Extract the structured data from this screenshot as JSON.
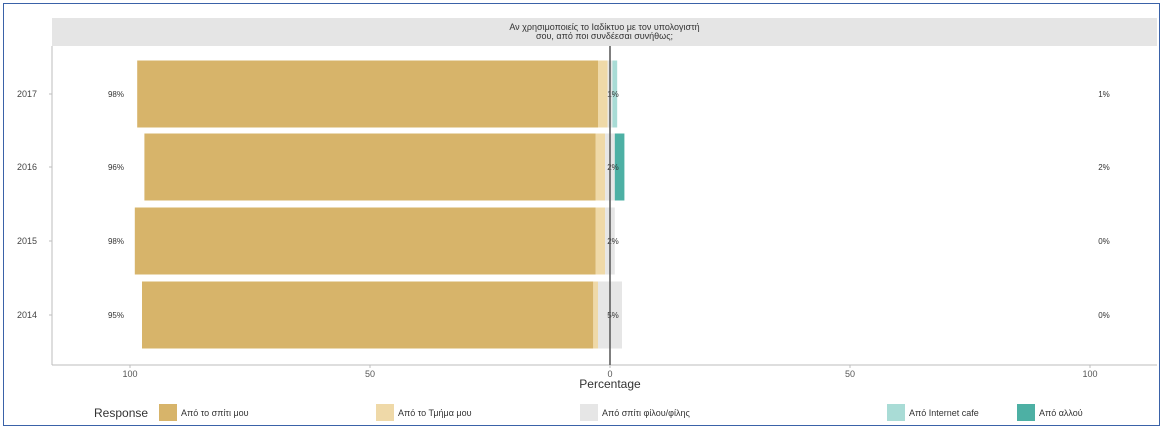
{
  "chart_data": {
    "type": "bar",
    "orientation": "horizontal",
    "stacking": "diverging",
    "title_lines": [
      "Αν χρησιμοποιείς το Ιαδίκτυο με τον υπολογιστή",
      "σου, από ποι συνδέεσαι συνήθως;"
    ],
    "xlabel": "Percentage",
    "xlim": [
      -100,
      100
    ],
    "x_ticks": [
      -100,
      -50,
      0,
      50,
      100
    ],
    "x_tick_labels": [
      "100",
      "50",
      "0",
      "50",
      "100"
    ],
    "legend_title": "Response",
    "legend_position": "bottom",
    "categories": [
      "2017",
      "2016",
      "2015",
      "2014"
    ],
    "series": [
      {
        "name": "Από το σπίτι μου",
        "color": "#D7B46A",
        "values": [
          96,
          94,
          96,
          94
        ],
        "side": "left"
      },
      {
        "name": "Από το Τμήμα μου",
        "color": "#EFD9A8",
        "values": [
          2,
          2,
          2,
          1
        ],
        "side": "left"
      },
      {
        "name": "Από σπίτι φίλου/φίλης",
        "color": "#E6E6E6",
        "values": [
          1,
          2,
          2,
          5
        ],
        "side": "center"
      },
      {
        "name": "Από Internet cafe",
        "color": "#A9DCD6",
        "values": [
          1,
          0,
          0,
          0
        ],
        "side": "right"
      },
      {
        "name": "Από αλλού",
        "color": "#4DB0A4",
        "values": [
          0,
          2,
          0,
          0
        ],
        "side": "right"
      }
    ],
    "left_labels": [
      "98%",
      "96%",
      "98%",
      "95%"
    ],
    "center_labels": [
      "1%",
      "2%",
      "2%",
      "5%"
    ],
    "right_labels": [
      "1%",
      "2%",
      "0%",
      "0%"
    ],
    "grid": false
  }
}
